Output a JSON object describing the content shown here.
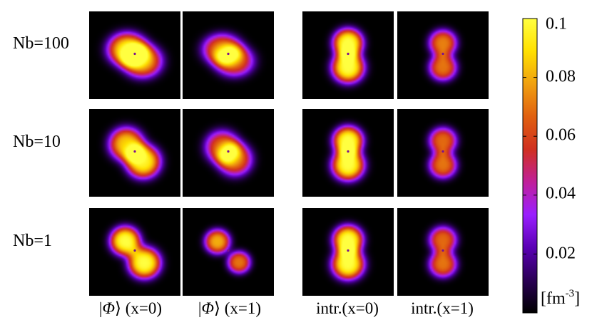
{
  "chart_data": {
    "type": "heatmap",
    "row_labels": [
      "Nb=100",
      "Nb=10",
      "Nb=1"
    ],
    "column_labels": [
      {
        "prefix": "|",
        "symbol": "Φ",
        "suffix": "⟩ (x=0)"
      },
      {
        "prefix": "|",
        "symbol": "Φ",
        "suffix": "⟩ (x=1)"
      },
      {
        "prefix": "",
        "symbol": "",
        "suffix": "intr.(x=0)"
      },
      {
        "prefix": "",
        "symbol": "",
        "suffix": "intr.(x=1)"
      }
    ],
    "colorbar": {
      "ticks": [
        "0.1",
        "0.08",
        "0.06",
        "0.04",
        "0.02"
      ],
      "tick_values": [
        0.1,
        0.08,
        0.06,
        0.04,
        0.02
      ],
      "range": [
        0,
        0.1
      ],
      "unit_base": "[fm",
      "unit_exp": "-3",
      "unit_close": "]",
      "colors": [
        "#000000",
        "#2a0055",
        "#5a00b4",
        "#9a1fff",
        "#c0209a",
        "#d03020",
        "#e06010",
        "#f0a010",
        "#ffe000",
        "#ffff40"
      ]
    },
    "panels": [
      [
        {
          "blobs": [
            [
              -0.25,
              -0.2,
              0.09,
              0.34,
              0.3
            ],
            [
              0.25,
              0.2,
              0.08,
              0.34,
              0.3
            ]
          ]
        },
        {
          "blobs": [
            [
              -0.2,
              -0.2,
              0.07,
              0.34,
              0.28
            ],
            [
              0.2,
              0.2,
              0.065,
              0.34,
              0.28
            ]
          ]
        },
        {
          "blobs": [
            [
              0,
              -0.42,
              0.1,
              0.26,
              0.26
            ],
            [
              0,
              0.42,
              0.1,
              0.28,
              0.28
            ]
          ]
        },
        {
          "blobs": [
            [
              0,
              -0.42,
              0.072,
              0.24,
              0.24
            ],
            [
              0,
              0.42,
              0.07,
              0.24,
              0.24
            ]
          ]
        }
      ],
      [
        {
          "blobs": [
            [
              -0.28,
              -0.3,
              0.085,
              0.3,
              0.3
            ],
            [
              0.28,
              0.3,
              0.095,
              0.3,
              0.3
            ]
          ]
        },
        {
          "blobs": [
            [
              -0.2,
              -0.2,
              0.065,
              0.3,
              0.3
            ],
            [
              0.22,
              0.22,
              0.07,
              0.3,
              0.3
            ]
          ]
        },
        {
          "blobs": [
            [
              0,
              -0.42,
              0.1,
              0.26,
              0.26
            ],
            [
              0,
              0.42,
              0.1,
              0.28,
              0.28
            ]
          ]
        },
        {
          "blobs": [
            [
              0,
              -0.42,
              0.068,
              0.24,
              0.24
            ],
            [
              0,
              0.42,
              0.07,
              0.24,
              0.24
            ]
          ]
        }
      ],
      [
        {
          "blobs": [
            [
              -0.32,
              -0.38,
              0.1,
              0.26,
              0.26
            ],
            [
              0.32,
              0.38,
              0.1,
              0.28,
              0.28
            ]
          ]
        },
        {
          "blobs": [
            [
              -0.36,
              -0.36,
              0.08,
              0.22,
              0.22
            ],
            [
              0.36,
              0.36,
              0.07,
              0.2,
              0.2
            ]
          ]
        },
        {
          "blobs": [
            [
              0,
              -0.42,
              0.1,
              0.26,
              0.26
            ],
            [
              0,
              0.42,
              0.1,
              0.28,
              0.28
            ]
          ]
        },
        {
          "blobs": [
            [
              0,
              -0.42,
              0.068,
              0.24,
              0.24
            ],
            [
              0,
              0.42,
              0.07,
              0.24,
              0.24
            ]
          ]
        }
      ]
    ]
  }
}
